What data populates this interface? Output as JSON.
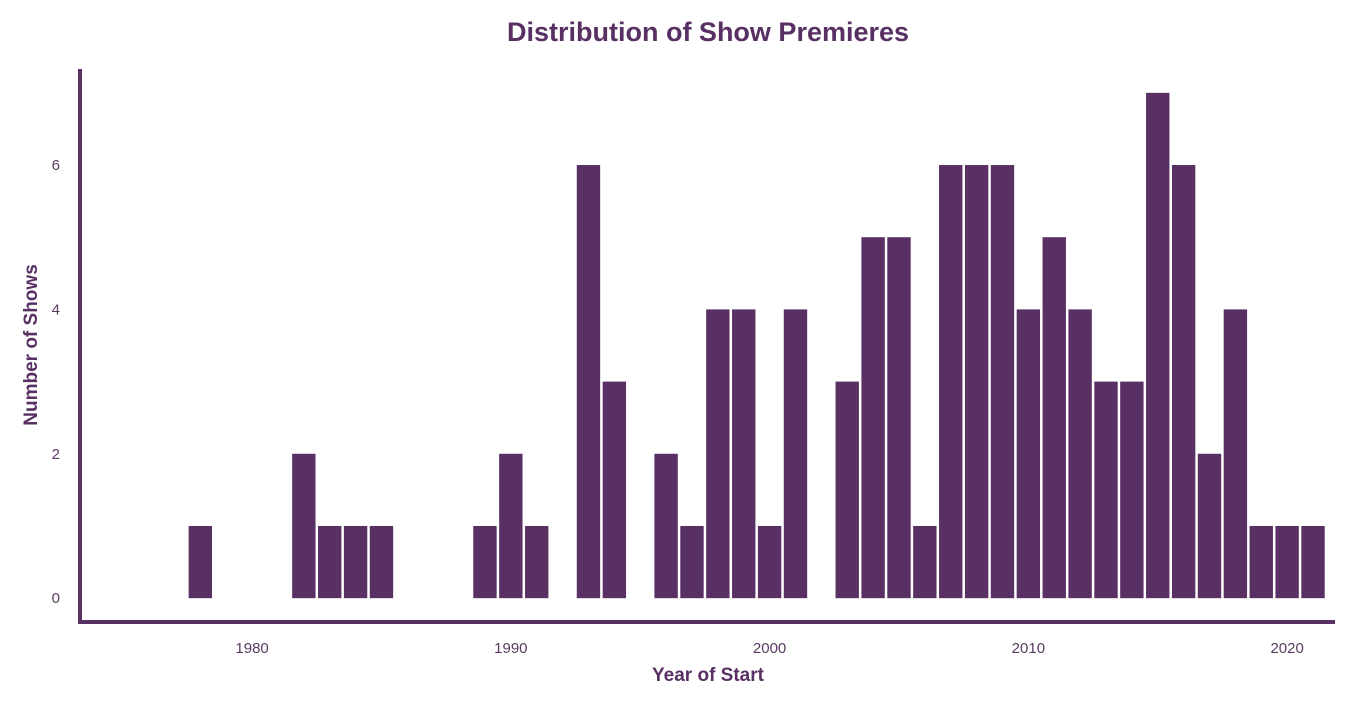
{
  "colors": {
    "bar": "#583063",
    "text": "#583063",
    "axis": "#583063",
    "tick_text": "#5a3a62"
  },
  "chart_data": {
    "type": "bar",
    "title": "Distribution of Show Premieres",
    "xlabel": "Year of Start",
    "ylabel": "Number of Shows",
    "x": [
      1978,
      1982,
      1983,
      1984,
      1985,
      1989,
      1990,
      1991,
      1993,
      1994,
      1996,
      1997,
      1998,
      1999,
      2000,
      2001,
      2003,
      2004,
      2005,
      2006,
      2007,
      2008,
      2009,
      2010,
      2011,
      2012,
      2013,
      2014,
      2015,
      2016,
      2017,
      2018,
      2019,
      2020,
      2021
    ],
    "values": [
      1,
      2,
      1,
      1,
      1,
      1,
      2,
      1,
      6,
      3,
      2,
      1,
      4,
      4,
      1,
      4,
      3,
      5,
      5,
      1,
      6,
      6,
      6,
      4,
      5,
      4,
      3,
      3,
      7,
      6,
      2,
      4,
      1,
      1,
      1
    ],
    "xlim": [
      1973.35,
      2021.85
    ],
    "ylim": [
      -0.33,
      7.33
    ],
    "x_ticks": [
      "1980",
      "1990",
      "2000",
      "2010",
      "2020"
    ],
    "y_ticks": [
      "0",
      "2",
      "4",
      "6"
    ],
    "grid": false,
    "legend": "none"
  }
}
